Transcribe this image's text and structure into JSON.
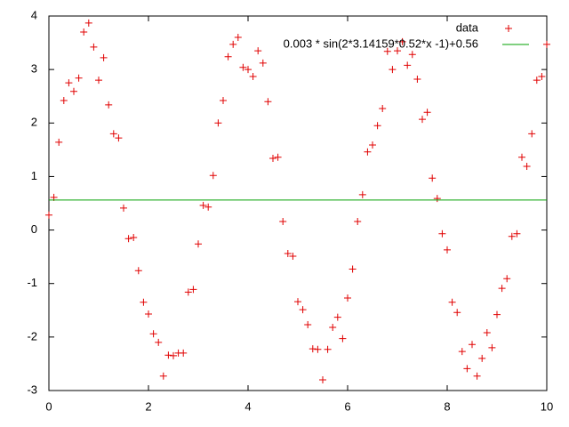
{
  "chart_data": {
    "type": "scatter",
    "xlim": [
      0,
      10
    ],
    "xticks": [
      0,
      2,
      4,
      6,
      8,
      10
    ],
    "ylim": [
      -3,
      4
    ],
    "yticks": [
      -3,
      -2,
      -1,
      0,
      1,
      2,
      3,
      4
    ],
    "legend": "top right",
    "series": [
      {
        "name": "data",
        "type": "scatter",
        "color": "#e00000",
        "x": [
          0,
          0.1,
          0.2,
          0.3,
          0.4,
          0.5,
          0.6,
          0.7,
          0.8,
          0.9,
          1,
          1.1,
          1.2,
          1.3,
          1.4,
          1.5,
          1.6,
          1.7,
          1.8,
          1.9,
          2,
          2.1,
          2.2,
          2.3,
          2.4,
          2.5,
          2.6,
          2.7,
          2.8,
          2.9,
          3,
          3.1,
          3.2,
          3.3,
          3.4,
          3.5,
          3.6,
          3.7,
          3.8,
          3.9,
          4,
          4.1,
          4.2,
          4.3,
          4.4,
          4.5,
          4.6,
          4.7,
          4.8,
          4.9,
          5,
          5.1,
          5.2,
          5.3,
          5.4,
          5.5,
          5.6,
          5.7,
          5.8,
          5.9,
          6,
          6.1,
          6.2,
          6.3,
          6.4,
          6.5,
          6.6,
          6.7,
          6.8,
          6.9,
          7,
          7.1,
          7.2,
          7.3,
          7.4,
          7.5,
          7.6,
          7.7,
          7.8,
          7.9,
          8,
          8.1,
          8.2,
          8.3,
          8.4,
          8.5,
          8.6,
          8.7,
          8.8,
          8.9,
          9,
          9.1,
          9.2,
          9.3,
          9.4,
          9.5,
          9.6,
          9.7,
          9.8,
          9.9,
          10
        ],
        "values": [
          0.28,
          0.61,
          1.64,
          2.42,
          2.75,
          2.59,
          2.84,
          3.7,
          3.87,
          3.42,
          2.8,
          3.22,
          2.34,
          1.8,
          1.72,
          0.41,
          -0.16,
          -0.14,
          -0.76,
          -1.35,
          -1.57,
          -1.94,
          -2.1,
          -2.73,
          -2.34,
          -2.35,
          -2.3,
          -2.3,
          -1.16,
          -1.11,
          -0.26,
          0.46,
          0.43,
          1.02,
          2.0,
          2.42,
          3.24,
          3.47,
          3.6,
          3.04,
          3.0,
          2.87,
          3.35,
          3.12,
          2.4,
          1.34,
          1.36,
          0.16,
          -0.44,
          -0.49,
          -1.34,
          -1.49,
          -1.77,
          -2.22,
          -2.23,
          -2.8,
          -2.23,
          -1.82,
          -1.63,
          -2.03,
          -1.27,
          -0.73,
          0.16,
          0.66,
          1.46,
          1.59,
          1.95,
          2.27,
          3.34,
          3.0,
          3.35,
          3.52,
          3.08,
          3.28,
          2.82,
          2.07,
          2.2,
          0.97,
          0.59,
          -0.07,
          -0.37,
          -1.35,
          -1.54,
          -2.27,
          -2.59,
          -2.14,
          -2.73,
          -2.4,
          -1.92,
          -2.2,
          -1.58,
          -1.09,
          -0.91,
          -0.12,
          -0.07,
          1.36,
          1.19,
          1.8,
          2.8,
          2.87,
          3.47
        ]
      },
      {
        "name": "0.003 * sin(2*3.14159*0.52*x -1)+0.56",
        "type": "line",
        "color": "#00a000",
        "x": [
          0,
          10
        ],
        "values": [
          0.56,
          0.56
        ]
      }
    ]
  }
}
